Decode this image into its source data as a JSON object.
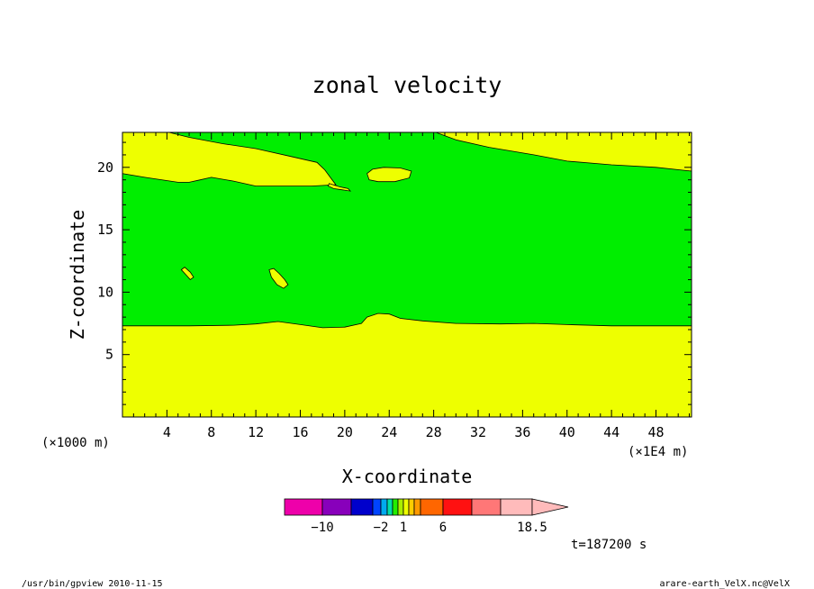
{
  "chart_data": {
    "type": "heatmap",
    "title": "zonal velocity",
    "xlabel": "X-coordinate",
    "ylabel": "Z-coordinate",
    "x_unit_left": "(×1000 m)",
    "x_unit_right": "(×1E4 m)",
    "xlim": [
      0,
      51.2
    ],
    "ylim": [
      0,
      22.8
    ],
    "xticks": [
      4,
      8,
      12,
      16,
      20,
      24,
      28,
      32,
      36,
      40,
      44,
      48
    ],
    "yticks": [
      5,
      10,
      15,
      20
    ],
    "background_color": "#eeff00",
    "regions": [
      {
        "color": "#00ee00",
        "points": [
          [
            0,
            7.3
          ],
          [
            6,
            7.3
          ],
          [
            10,
            7.35
          ],
          [
            12,
            7.45
          ],
          [
            14,
            7.65
          ],
          [
            16,
            7.4
          ],
          [
            18,
            7.15
          ],
          [
            20,
            7.2
          ],
          [
            21.5,
            7.5
          ],
          [
            22,
            8.0
          ],
          [
            23,
            8.3
          ],
          [
            24,
            8.25
          ],
          [
            25,
            7.9
          ],
          [
            27,
            7.7
          ],
          [
            30,
            7.5
          ],
          [
            34,
            7.45
          ],
          [
            37,
            7.5
          ],
          [
            40,
            7.4
          ],
          [
            44,
            7.3
          ],
          [
            51.2,
            7.3
          ],
          [
            51.2,
            19.7
          ],
          [
            48,
            20.0
          ],
          [
            44,
            20.2
          ],
          [
            40,
            20.5
          ],
          [
            37,
            21.0
          ],
          [
            33,
            21.6
          ],
          [
            30,
            22.2
          ],
          [
            28.2,
            22.8
          ],
          [
            4.2,
            22.8
          ],
          [
            6,
            22.4
          ],
          [
            9,
            21.9
          ],
          [
            12,
            21.5
          ],
          [
            15,
            20.9
          ],
          [
            17.5,
            20.4
          ],
          [
            18.2,
            19.8
          ],
          [
            19.2,
            18.6
          ],
          [
            17,
            18.5
          ],
          [
            15,
            18.5
          ],
          [
            12,
            18.5
          ],
          [
            10,
            18.9
          ],
          [
            8,
            19.2
          ],
          [
            7,
            19.0
          ],
          [
            6,
            18.8
          ],
          [
            5,
            18.8
          ],
          [
            2,
            19.2
          ],
          [
            0,
            19.5
          ]
        ]
      },
      {
        "color": "#eeff00",
        "points": [
          [
            18.6,
            18.7
          ],
          [
            19.5,
            18.45
          ],
          [
            20.3,
            18.3
          ],
          [
            20.5,
            18.1
          ],
          [
            19.8,
            18.2
          ],
          [
            19.0,
            18.3
          ],
          [
            18.5,
            18.5
          ]
        ]
      },
      {
        "color": "#eeff00",
        "points": [
          [
            22,
            19.5
          ],
          [
            22.5,
            19.85
          ],
          [
            23.5,
            20.0
          ],
          [
            25,
            19.95
          ],
          [
            26,
            19.7
          ],
          [
            25.8,
            19.15
          ],
          [
            24.5,
            18.85
          ],
          [
            23,
            18.85
          ],
          [
            22.2,
            19.0
          ]
        ]
      },
      {
        "color": "#eeff00",
        "points": [
          [
            5.3,
            11.8
          ],
          [
            5.6,
            12.0
          ],
          [
            6.1,
            11.6
          ],
          [
            6.4,
            11.2
          ],
          [
            6.1,
            11.0
          ],
          [
            5.7,
            11.4
          ]
        ]
      },
      {
        "color": "#eeff00",
        "points": [
          [
            13.2,
            11.8
          ],
          [
            13.6,
            11.9
          ],
          [
            14.1,
            11.5
          ],
          [
            14.6,
            11.0
          ],
          [
            14.9,
            10.6
          ],
          [
            14.5,
            10.3
          ],
          [
            13.9,
            10.6
          ],
          [
            13.4,
            11.2
          ]
        ]
      }
    ],
    "colorbar": {
      "colors": [
        "#ee00aa",
        "#8800bb",
        "#0000cc",
        "#0044ff",
        "#00aaee",
        "#00ddaa",
        "#22ee00",
        "#aaee00",
        "#eeff00",
        "#ffcc00",
        "#ff9900",
        "#ff6600",
        "#ff1111",
        "#ff7777",
        "#ffbbbb"
      ],
      "widths": [
        42,
        32,
        24,
        9,
        7,
        6,
        6,
        6,
        6,
        6,
        7,
        25,
        32,
        32,
        35
      ],
      "labels": [
        "−10",
        "−2",
        "1",
        "6",
        "18.5"
      ],
      "label_after_segment": [
        0,
        3,
        7,
        11,
        14
      ],
      "arrow_color": "#ffbbbb"
    },
    "time_label": "t=187200 s"
  },
  "footer_left": "/usr/bin/gpview   2010-11-15",
  "footer_right": "arare-earth_VelX.nc@VelX"
}
